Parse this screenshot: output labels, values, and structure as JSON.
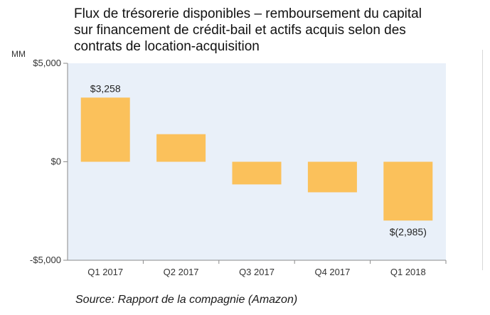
{
  "title_lines": [
    "Flux de trésorerie disponibles – remboursement du capital",
    "sur financement de crédit-bail et actifs acquis selon des",
    "contrats de location-acquisition"
  ],
  "unit_label": "MM",
  "source": "Source: Rapport de la compagnie (Amazon)",
  "chart_data": {
    "type": "bar",
    "title": "Flux de trésorerie disponibles – remboursement du capital sur financement de crédit-bail et actifs acquis selon des contrats de location-acquisition",
    "categories": [
      "Q1 2017",
      "Q2 2017",
      "Q3 2017",
      "Q4 2017",
      "Q1 2018"
    ],
    "values": [
      3258,
      1400,
      -1150,
      -1550,
      -2985
    ],
    "data_labels": [
      "$3,258",
      "",
      "",
      "",
      "$(2,985)"
    ],
    "y_ticks": [
      5000,
      0,
      -5000
    ],
    "y_tick_labels": [
      "$5,000",
      "$0",
      "-$5,000"
    ],
    "ylim": [
      -5000,
      5000
    ],
    "ylabel": "MM",
    "grid": false,
    "colors": {
      "bar": "#fbc15b",
      "plot_bg": "#e9f0f9",
      "axis": "#8a8a8a"
    }
  }
}
